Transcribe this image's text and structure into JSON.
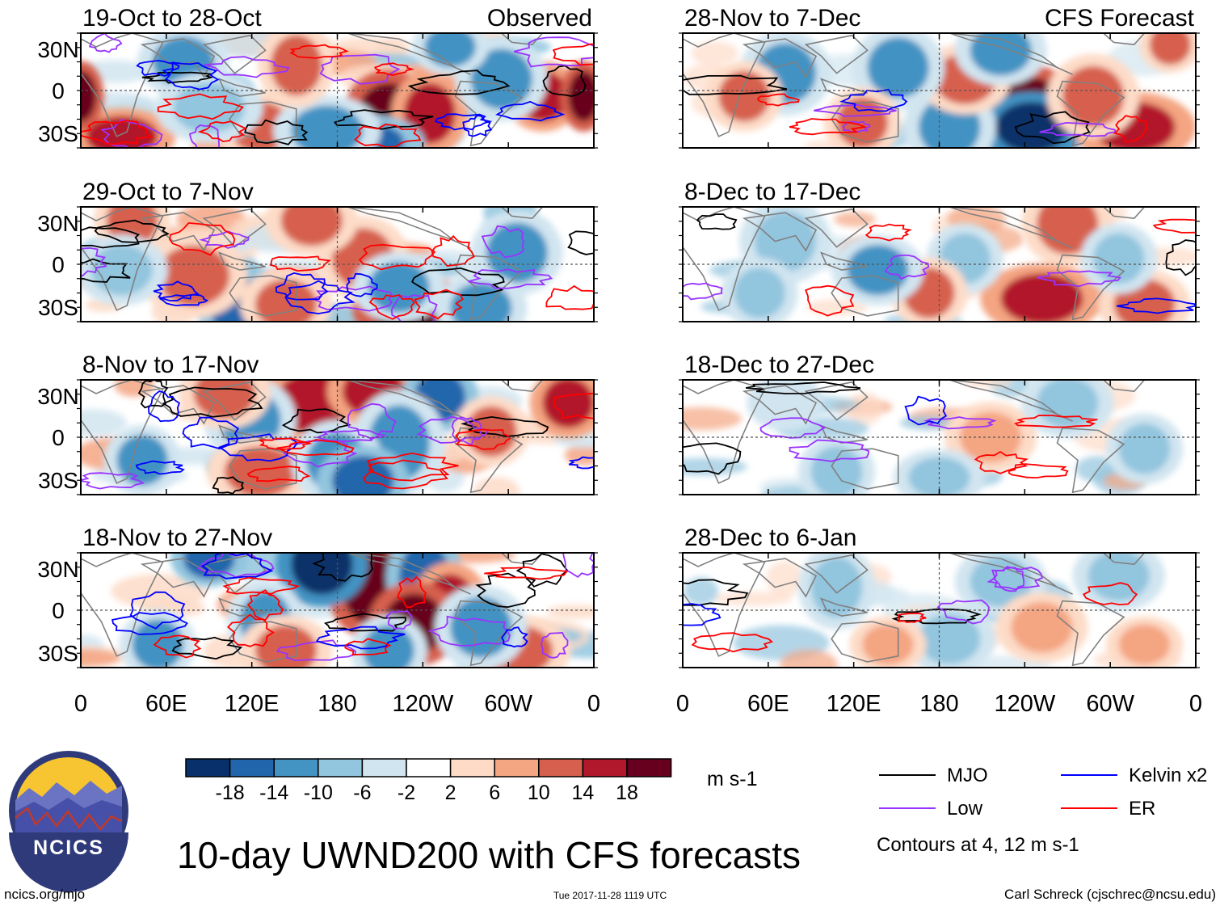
{
  "figure": {
    "title": "10-day UWND200 with CFS forecasts",
    "website": "ncics.org/mjo",
    "timestamp": "Tue 2017-11-28 1119 UTC",
    "author": "Carl Schreck (cjschrec@ncsu.edu)",
    "logo_text": "NCICS"
  },
  "colors": {
    "scale": [
      "#08306b",
      "#2166ac",
      "#4393c3",
      "#92c5de",
      "#d1e5f0",
      "#ffffff",
      "#fddbc7",
      "#f4a582",
      "#d6604d",
      "#b2182b",
      "#67001f"
    ],
    "mjo": "#000000",
    "low": "#9933ff",
    "kelvin": "#0000ff",
    "er": "#ff0000",
    "land": "#808080",
    "logo_ring": "#2f3a7a",
    "logo_sun": "#f7c531"
  },
  "chart_data": {
    "type": "heatmap",
    "variable": "200-hPa zonal wind anomaly",
    "units": "m s-1",
    "colorbar": {
      "ticks": [
        -18,
        -14,
        -10,
        -6,
        -2,
        2,
        6,
        10,
        14,
        18
      ],
      "labels": [
        "-18",
        "-14",
        "-10",
        "-6",
        "-2",
        "2",
        "6",
        "10",
        "14",
        "18"
      ]
    },
    "lon_ticks": [
      "0",
      "60E",
      "120E",
      "180",
      "120W",
      "60W",
      "0"
    ],
    "lat_ticks": [
      "30N",
      "0",
      "30S"
    ],
    "observed_label": "Observed",
    "forecast_label": "CFS Forecast",
    "panels": [
      {
        "period": "19-Oct to 28-Oct",
        "column": "observed"
      },
      {
        "period": "29-Oct to 7-Nov",
        "column": "observed"
      },
      {
        "period": "8-Nov to 17-Nov",
        "column": "observed"
      },
      {
        "period": "18-Nov to 27-Nov",
        "column": "observed"
      },
      {
        "period": "28-Nov to 7-Dec",
        "column": "forecast"
      },
      {
        "period": "8-Dec to 17-Dec",
        "column": "forecast"
      },
      {
        "period": "18-Dec to 27-Dec",
        "column": "forecast"
      },
      {
        "period": "28-Dec to 6-Jan",
        "column": "forecast"
      }
    ],
    "legend": {
      "items": [
        {
          "label": "MJO",
          "color_key": "mjo"
        },
        {
          "label": "Kelvin x2",
          "color_key": "kelvin"
        },
        {
          "label": "Low",
          "color_key": "low"
        },
        {
          "label": "ER",
          "color_key": "er"
        }
      ],
      "note": "Contours at 4, 12 m s-1"
    }
  }
}
